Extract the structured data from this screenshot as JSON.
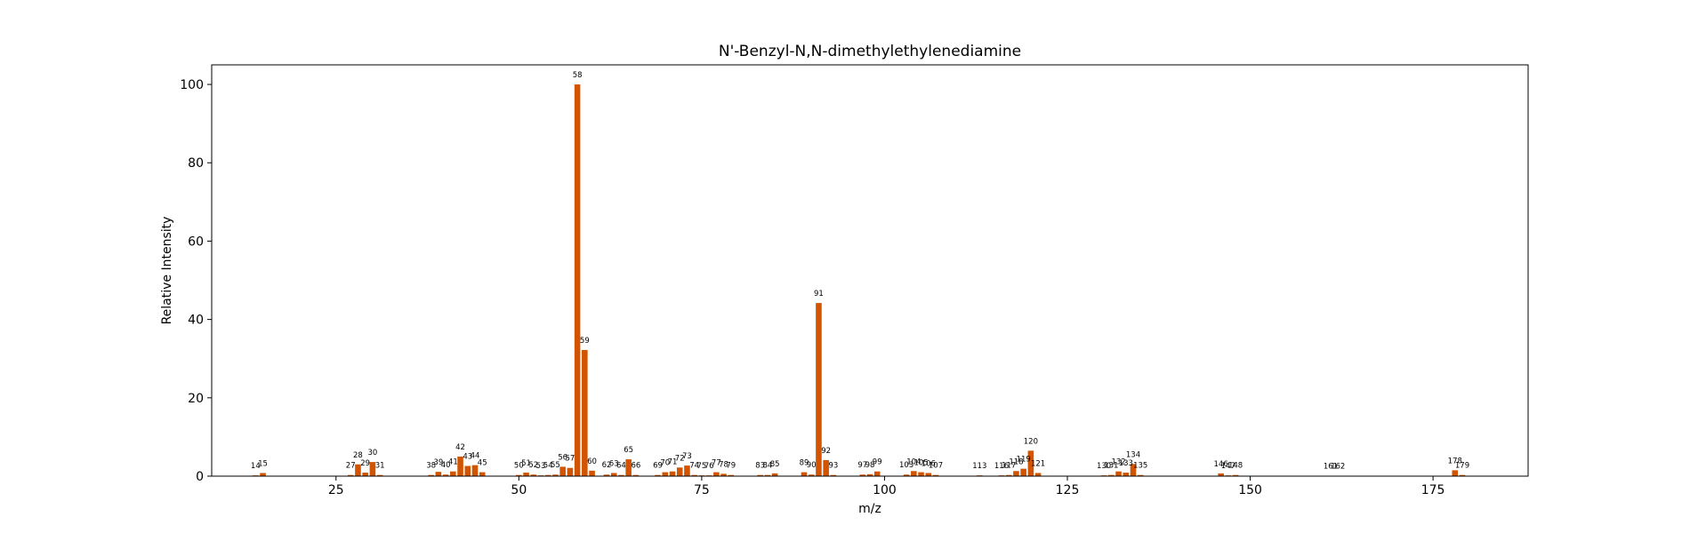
{
  "chart_data": {
    "type": "bar",
    "title": "N'-Benzyl-N,N-dimethylethylenediamine",
    "xlabel": "m/z",
    "ylabel": "Relative Intensity",
    "xlim": [
      8,
      188
    ],
    "ylim": [
      0,
      105
    ],
    "xticks": [
      25,
      50,
      75,
      100,
      125,
      150,
      175
    ],
    "yticks": [
      0,
      20,
      40,
      60,
      80,
      100
    ],
    "grid": false,
    "bar_color": "#d35400",
    "series": [
      {
        "x": [
          14,
          15,
          27,
          28,
          29,
          30,
          31,
          38,
          39,
          40,
          41,
          42,
          43,
          44,
          45,
          50,
          51,
          52,
          53,
          54,
          55,
          56,
          57,
          58,
          59,
          60,
          62,
          63,
          64,
          65,
          66,
          69,
          70,
          71,
          72,
          73,
          74,
          75,
          76,
          77,
          78,
          79,
          83,
          84,
          85,
          89,
          90,
          91,
          92,
          93,
          97,
          98,
          99,
          103,
          104,
          105,
          106,
          107,
          113,
          116,
          117,
          118,
          119,
          120,
          121,
          130,
          131,
          132,
          133,
          134,
          135,
          146,
          147,
          148,
          161,
          162,
          178,
          179
        ],
        "values": [
          0.2,
          0.8,
          0.3,
          3.0,
          0.9,
          3.6,
          0.3,
          0.3,
          1.1,
          0.4,
          1.2,
          5.0,
          2.6,
          2.8,
          1.0,
          0.3,
          0.9,
          0.4,
          0.2,
          0.3,
          0.4,
          2.4,
          2.1,
          100,
          32.2,
          1.4,
          0.4,
          0.8,
          0.3,
          4.3,
          0.3,
          0.3,
          1.0,
          1.2,
          2.2,
          2.7,
          0.3,
          0.2,
          0.2,
          1.0,
          0.6,
          0.3,
          0.3,
          0.3,
          0.7,
          1.0,
          0.4,
          44.2,
          4.1,
          0.3,
          0.4,
          0.5,
          1.2,
          0.4,
          1.3,
          1.0,
          0.8,
          0.3,
          0.2,
          0.2,
          0.3,
          1.3,
          1.9,
          6.5,
          0.8,
          0.2,
          0.3,
          1.2,
          0.9,
          3.1,
          0.3,
          0.7,
          0.2,
          0.3,
          0.1,
          0.1,
          1.5,
          0.3
        ]
      }
    ]
  }
}
